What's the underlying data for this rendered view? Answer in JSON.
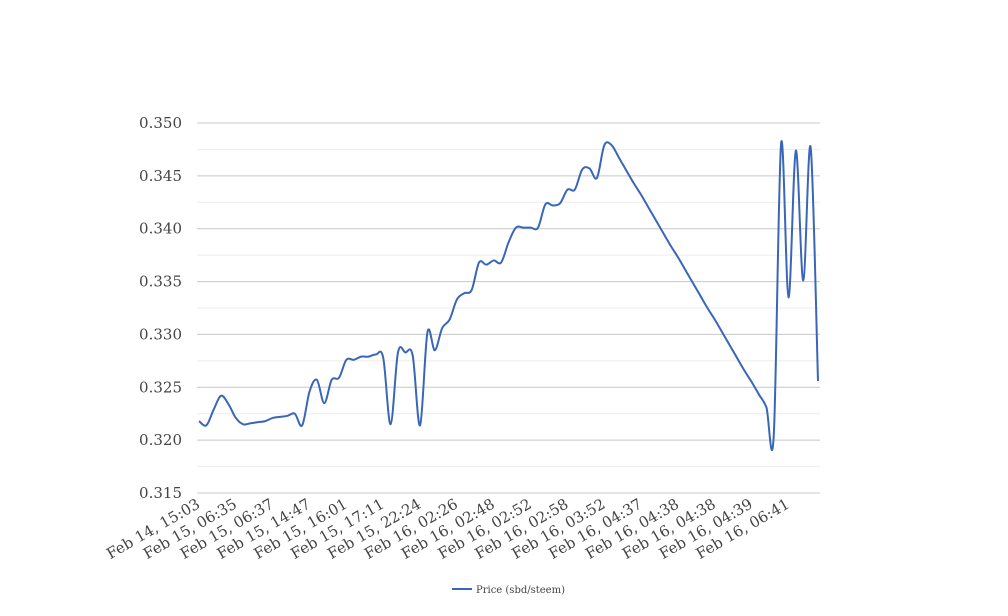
{
  "chart_data": {
    "type": "line",
    "categories": [
      "Feb 14, 15:03",
      null,
      null,
      null,
      null,
      "Feb 15, 06:35",
      null,
      null,
      null,
      null,
      "Feb 15, 06:37",
      null,
      null,
      null,
      null,
      "Feb 15, 14:47",
      null,
      null,
      null,
      null,
      "Feb 15, 16:01",
      null,
      null,
      null,
      null,
      "Feb 15, 17:11",
      null,
      null,
      null,
      null,
      "Feb 15, 22:24",
      null,
      null,
      null,
      null,
      "Feb 16, 02:26",
      null,
      null,
      null,
      null,
      "Feb 16, 02:48",
      null,
      null,
      null,
      null,
      "Feb 16, 02:52",
      null,
      null,
      null,
      null,
      "Feb 16, 02:58",
      null,
      null,
      null,
      null,
      "Feb 16, 03:52",
      null,
      null,
      null,
      null,
      "Feb 16, 04:37",
      null,
      null,
      null,
      null,
      "Feb 16, 04:38",
      null,
      null,
      null,
      null,
      "Feb 16, 04:38",
      null,
      null,
      null,
      null,
      "Feb 16, 04:39",
      null,
      null,
      null,
      null,
      "Feb 16, 06:41",
      null,
      null,
      null,
      null
    ],
    "series": [
      {
        "name": "Price (sbd/steem)",
        "color": "#3a66b8",
        "values": [
          0.3218,
          0.3214,
          0.3229,
          0.3242,
          0.3234,
          0.3221,
          0.3215,
          0.3216,
          0.3217,
          0.3218,
          0.3221,
          0.3222,
          0.3223,
          0.3225,
          0.3214,
          0.3246,
          0.3257,
          0.3235,
          0.3257,
          0.3259,
          0.3276,
          0.3276,
          0.3279,
          0.3279,
          0.3281,
          0.3278,
          0.3215,
          0.3283,
          0.3283,
          0.328,
          0.3214,
          0.3302,
          0.3285,
          0.3306,
          0.3314,
          0.3333,
          0.3339,
          0.3342,
          0.3368,
          0.3366,
          0.337,
          0.3368,
          0.3387,
          0.3401,
          0.3401,
          0.3401,
          0.3401,
          0.3423,
          0.3422,
          0.3424,
          0.3437,
          0.3437,
          0.3456,
          0.3457,
          0.3448,
          0.3479,
          0.3479,
          0.3467,
          0.3455,
          0.3443,
          0.3432,
          0.342,
          0.3408,
          0.3396,
          0.3384,
          0.3373,
          0.3361,
          0.3349,
          0.3337,
          0.3325,
          0.3314,
          0.3302,
          0.329,
          0.3278,
          0.3266,
          0.3255,
          0.3243,
          0.3231,
          0.3205,
          0.3481,
          0.3335,
          0.3474,
          0.3351,
          0.3477,
          0.3256
        ]
      }
    ],
    "ylim": [
      0.315,
      0.35
    ],
    "yticks": [
      {
        "value": 0.315,
        "label": "0.315"
      },
      {
        "value": 0.32,
        "label": "0.320"
      },
      {
        "value": 0.325,
        "label": "0.325"
      },
      {
        "value": 0.33,
        "label": "0.330"
      },
      {
        "value": 0.335,
        "label": "0.335"
      },
      {
        "value": 0.34,
        "label": "0.340"
      },
      {
        "value": 0.345,
        "label": "0.345"
      },
      {
        "value": 0.35,
        "label": "0.350"
      }
    ],
    "minor_yticks": [
      0.3175,
      0.3225,
      0.3275,
      0.3325,
      0.3375,
      0.3425,
      0.3475
    ],
    "grid": true,
    "smooth": true,
    "legend": "bottom"
  }
}
